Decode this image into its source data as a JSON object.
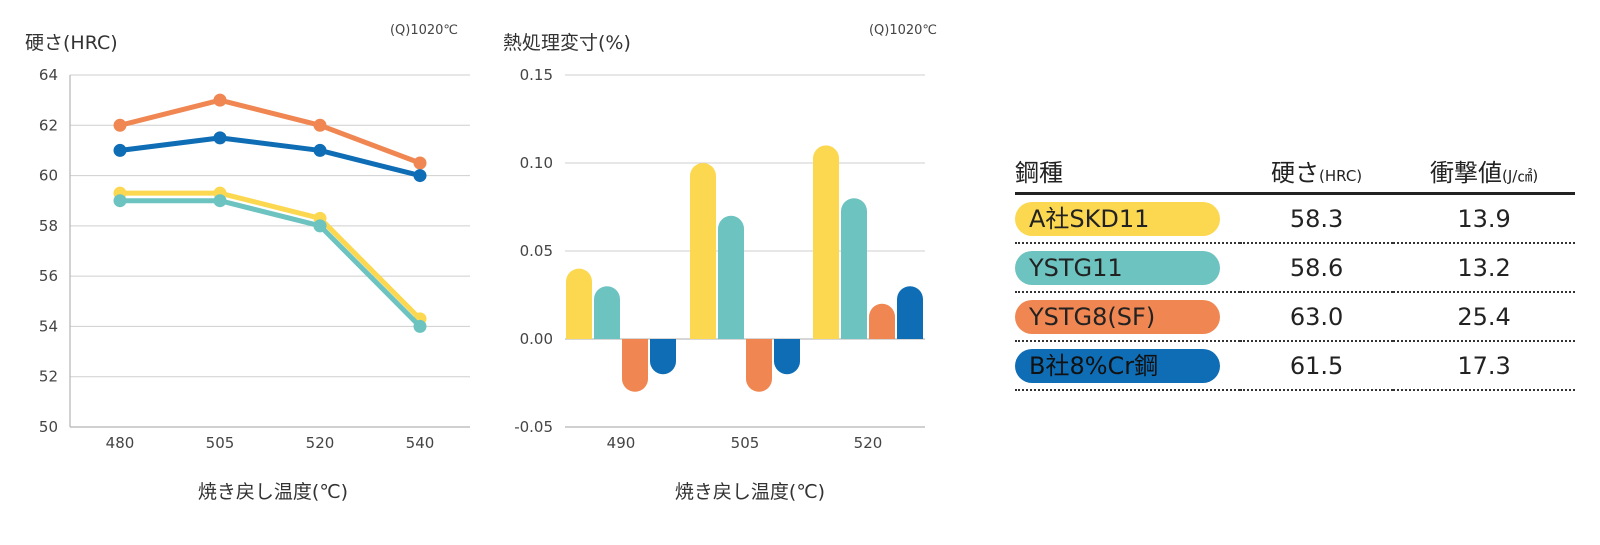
{
  "colors": {
    "a_skd11": "#fcd750",
    "ystg11": "#6cc3c0",
    "ystg8sf": "#f08752",
    "b_8cr": "#0e6db5"
  },
  "chart_data": [
    {
      "type": "line",
      "title": "硬さ(HRC)",
      "condition": "(Q)1020℃",
      "xlabel": "焼き戻し温度(℃)",
      "ylabel": "硬さ(HRC)",
      "categories": [
        "480",
        "505",
        "520",
        "540"
      ],
      "ylim": [
        50,
        64
      ],
      "yticks": [
        "50",
        "52",
        "54",
        "56",
        "58",
        "60",
        "62",
        "64"
      ],
      "grid": true,
      "series": [
        {
          "key": "ystg8sf",
          "values": [
            62,
            63,
            62,
            60.5
          ]
        },
        {
          "key": "b_8cr",
          "values": [
            61,
            61.5,
            61,
            60
          ]
        },
        {
          "key": "a_skd11",
          "values": [
            59.3,
            59.3,
            58.3,
            54.3
          ]
        },
        {
          "key": "ystg11",
          "values": [
            59,
            59,
            58,
            54
          ]
        }
      ]
    },
    {
      "type": "bar",
      "title": "熱処理変寸(%)",
      "condition": "(Q)1020℃",
      "xlabel": "焼き戻し温度(℃)",
      "ylabel": "熱処理変寸(%)",
      "categories": [
        "490",
        "505",
        "520"
      ],
      "ylim": [
        -0.05,
        0.15
      ],
      "yticks": [
        "-0.05",
        "0.00",
        "0.05",
        "0.10",
        "0.15"
      ],
      "grid": true,
      "series": [
        {
          "key": "a_skd11",
          "values": [
            0.04,
            0.1,
            0.11
          ]
        },
        {
          "key": "ystg11",
          "values": [
            0.03,
            0.07,
            0.08
          ]
        },
        {
          "key": "ystg8sf",
          "values": [
            -0.03,
            -0.03,
            0.02
          ]
        },
        {
          "key": "b_8cr",
          "values": [
            -0.02,
            -0.02,
            0.03
          ]
        }
      ]
    }
  ],
  "table": {
    "headers": {
      "name": "鋼種",
      "hardness": "硬さ",
      "hardness_unit": "(HRC)",
      "impact": "衝撃値",
      "impact_unit": "(J/㎠)"
    },
    "rows": [
      {
        "name": "A社SKD11",
        "hardness": "58.3",
        "impact": "13.9",
        "color_key": "a_skd11"
      },
      {
        "name": "YSTG11",
        "hardness": "58.6",
        "impact": "13.2",
        "color_key": "ystg11"
      },
      {
        "name": "YSTG8(SF)",
        "hardness": "63.0",
        "impact": "25.4",
        "color_key": "ystg8sf"
      },
      {
        "name": "B社8%Cr鋼",
        "hardness": "61.5",
        "impact": "17.3",
        "color_key": "b_8cr"
      }
    ]
  }
}
